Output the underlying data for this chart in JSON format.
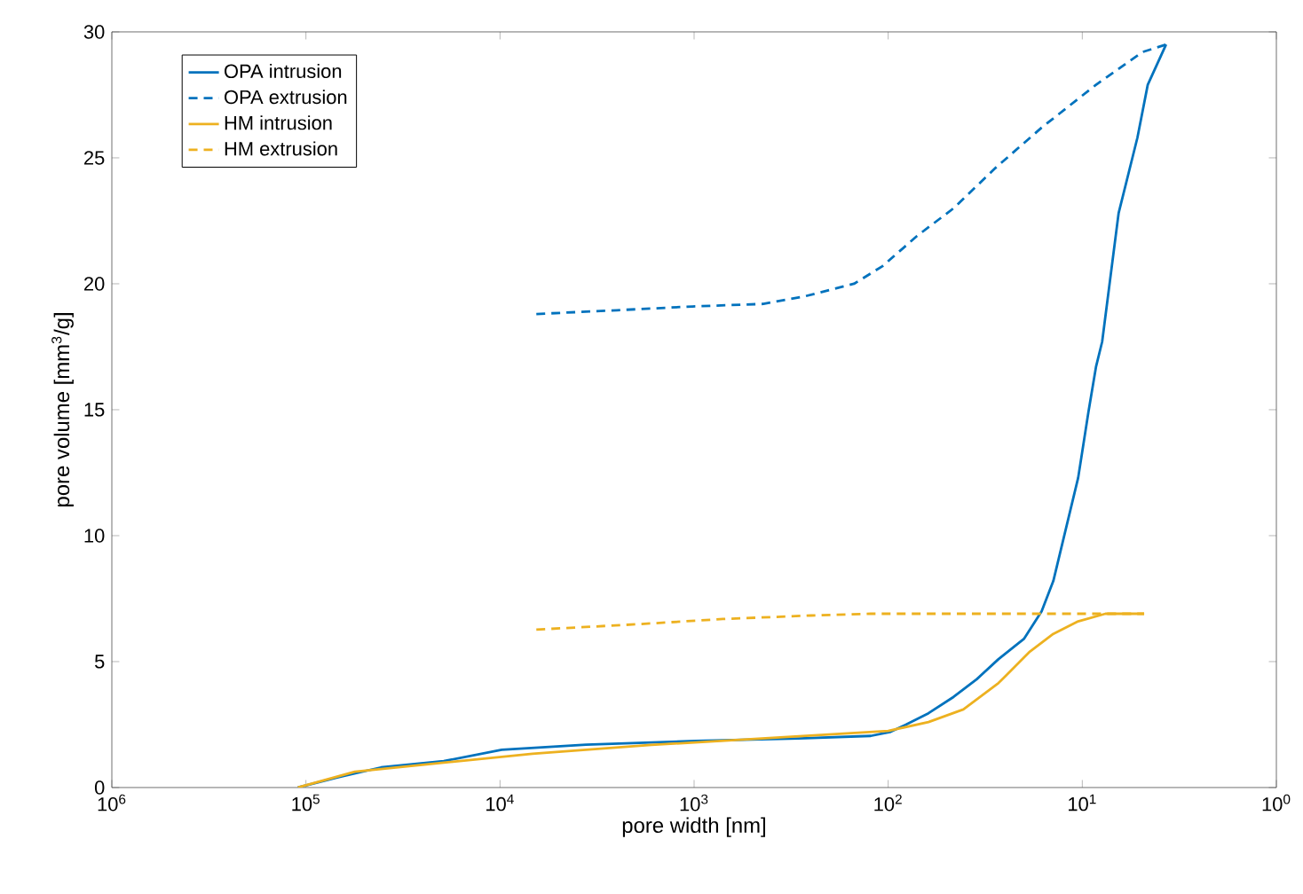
{
  "chart_data": {
    "type": "line",
    "xlabel": "pore width [nm]",
    "ylabel": "pore volume [mm$^{3}$/g]",
    "log": "x",
    "xlim": [
      1000000,
      1
    ],
    "ylim": [
      0,
      30
    ],
    "xticks": [
      {
        "value": 1000000,
        "label": "10$^{6}$"
      },
      {
        "value": 100000,
        "label": "10$^{5}$"
      },
      {
        "value": 10000,
        "label": "10$^{4}$"
      },
      {
        "value": 1000,
        "label": "10$^{3}$"
      },
      {
        "value": 100,
        "label": "10$^{2}$"
      },
      {
        "value": 10,
        "label": "10$^{1}$"
      },
      {
        "value": 1,
        "label": "10$^{0}$"
      }
    ],
    "yticks": [
      0,
      5,
      10,
      15,
      20,
      25,
      30
    ],
    "grid": false,
    "legend": "top left",
    "series": [
      {
        "name": "OPA intrusion",
        "color": "#0072bd",
        "line_style": "solid",
        "x": [
          110000,
          69000,
          41000,
          19500,
          9800,
          3600,
          980,
          290,
          123,
          98,
          81,
          62,
          46,
          35,
          27,
          20,
          16.2,
          14.1,
          12.3,
          10.5,
          9.3,
          8.5,
          7.9,
          6.5,
          5.2,
          4.6,
          3.7
        ],
        "values": [
          0,
          0.4,
          0.8,
          1.05,
          1.5,
          1.7,
          1.85,
          1.95,
          2.05,
          2.2,
          2.5,
          2.95,
          3.6,
          4.3,
          5.1,
          5.9,
          7.0,
          8.2,
          10.1,
          12.3,
          14.9,
          16.7,
          17.7,
          22.8,
          25.8,
          27.9,
          29.5
        ]
      },
      {
        "name": "OPA extrusion",
        "color": "#0072bd",
        "line_style": "dashed",
        "x": [
          6500,
          2500,
          1020,
          440,
          270,
          150,
          107,
          71,
          46,
          28,
          16.2,
          8.5,
          4.9,
          3.7
        ],
        "values": [
          18.8,
          18.95,
          19.1,
          19.2,
          19.5,
          20.0,
          20.7,
          21.9,
          23.0,
          24.6,
          26.2,
          27.9,
          29.2,
          29.5
        ]
      },
      {
        "name": "HM intrusion",
        "color": "#edb120",
        "line_style": "solid",
        "x": [
          110000,
          56000,
          19500,
          6800,
          1660,
          410,
          100,
          62,
          41,
          27,
          18.6,
          14.1,
          10.5,
          7.6,
          4.8
        ],
        "values": [
          0,
          0.63,
          0.99,
          1.34,
          1.69,
          1.97,
          2.25,
          2.6,
          3.1,
          4.15,
          5.4,
          6.1,
          6.6,
          6.9,
          6.9
        ]
      },
      {
        "name": "HM extrusion",
        "color": "#edb120",
        "line_style": "dashed",
        "x": [
          6500,
          2000,
          710,
          250,
          123,
          4.8
        ],
        "values": [
          6.27,
          6.48,
          6.69,
          6.83,
          6.9,
          6.9
        ]
      }
    ]
  }
}
